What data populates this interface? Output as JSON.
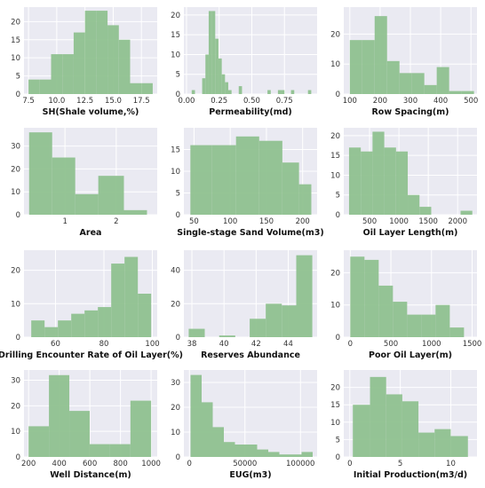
{
  "chart_data": [
    {
      "type": "bar",
      "xlabel": "SH(Shale volume,%)",
      "xlim": [
        7.1,
        18.9
      ],
      "ylim": [
        0,
        24
      ],
      "xticks": [
        7.5,
        10.0,
        12.5,
        15.0,
        17.5
      ],
      "xtick_labels": [
        "7.5",
        "10.0",
        "12.5",
        "15.0",
        "17.5"
      ],
      "yticks": [
        0,
        5,
        10,
        15,
        20
      ],
      "yfmt": "0",
      "bins": [
        [
          7.5,
          8.5
        ],
        [
          8.5,
          9.5
        ],
        [
          9.5,
          10.5
        ],
        [
          10.5,
          11.5
        ],
        [
          11.5,
          12.5
        ],
        [
          12.5,
          13.5
        ],
        [
          13.5,
          14.5
        ],
        [
          14.5,
          15.5
        ],
        [
          15.5,
          16.5
        ],
        [
          16.5,
          17.5
        ],
        [
          17.5,
          18.5
        ]
      ],
      "values": [
        4,
        4,
        11,
        11,
        17,
        23,
        23,
        19,
        15,
        3,
        3
      ]
    },
    {
      "type": "bar",
      "xlabel": "Permeability(md)",
      "xlim": [
        -0.02,
        1.0
      ],
      "ylim": [
        0,
        22
      ],
      "xticks": [
        0.0,
        0.25,
        0.5,
        0.75
      ],
      "xtick_labels": [
        "0.00",
        "0.25",
        "0.50",
        "0.75"
      ],
      "yticks": [
        0,
        5,
        10,
        15,
        20
      ],
      "yfmt": "0",
      "bins": [
        [
          0.04,
          0.065
        ],
        [
          0.12,
          0.145
        ],
        [
          0.145,
          0.17
        ],
        [
          0.17,
          0.195
        ],
        [
          0.195,
          0.22
        ],
        [
          0.22,
          0.245
        ],
        [
          0.245,
          0.27
        ],
        [
          0.27,
          0.295
        ],
        [
          0.295,
          0.32
        ],
        [
          0.32,
          0.345
        ],
        [
          0.4,
          0.425
        ],
        [
          0.62,
          0.645
        ],
        [
          0.7,
          0.725
        ],
        [
          0.725,
          0.75
        ],
        [
          0.8,
          0.825
        ],
        [
          0.93,
          0.955
        ]
      ],
      "values": [
        1,
        4,
        10,
        21,
        21,
        14,
        9,
        5,
        3,
        1,
        2,
        1,
        1,
        1,
        1,
        1
      ]
    },
    {
      "type": "bar",
      "xlabel": "Row Spacing(m)",
      "xlim": [
        80,
        520
      ],
      "ylim": [
        0,
        29
      ],
      "xticks": [
        100,
        200,
        300,
        400,
        500
      ],
      "xtick_labels": [
        "100",
        "200",
        "300",
        "400",
        "500"
      ],
      "yticks": [
        0,
        10,
        20
      ],
      "yfmt": "0",
      "bins": [
        [
          100,
          141
        ],
        [
          141,
          182
        ],
        [
          182,
          223
        ],
        [
          223,
          264
        ],
        [
          264,
          305
        ],
        [
          305,
          346
        ],
        [
          346,
          387
        ],
        [
          387,
          428
        ],
        [
          428,
          469
        ],
        [
          469,
          510
        ]
      ],
      "values": [
        18,
        18,
        26,
        11,
        7,
        7,
        3,
        9,
        1,
        1
      ]
    },
    {
      "type": "bar",
      "xlabel": "Area",
      "xlim": [
        0.2,
        2.8
      ],
      "ylim": [
        0,
        38
      ],
      "xticks": [
        1,
        2
      ],
      "xtick_labels": [
        "1",
        "2"
      ],
      "yticks": [
        0,
        10,
        20,
        30
      ],
      "yfmt": "0",
      "bins": [
        [
          0.3,
          0.75
        ],
        [
          0.75,
          1.2
        ],
        [
          1.2,
          1.65
        ],
        [
          1.65,
          2.15
        ],
        [
          2.15,
          2.6
        ]
      ],
      "values": [
        36,
        25,
        9,
        17,
        2
      ]
    },
    {
      "type": "bar",
      "xlabel": "Single-stage Sand Volume(m3)",
      "xlim": [
        36,
        220
      ],
      "ylim": [
        0,
        20
      ],
      "xticks": [
        50,
        100,
        150,
        200
      ],
      "xtick_labels": [
        "50",
        "100",
        "150",
        "200"
      ],
      "yticks": [
        0,
        5,
        10,
        15
      ],
      "yfmt": "0",
      "bins": [
        [
          45,
          75
        ],
        [
          75,
          108
        ],
        [
          108,
          140
        ],
        [
          140,
          172
        ],
        [
          172,
          195
        ],
        [
          195,
          212
        ]
      ],
      "values": [
        16,
        16,
        18,
        17,
        12,
        7
      ]
    },
    {
      "type": "bar",
      "xlabel": "Oil Layer Length(m)",
      "xlim": [
        60,
        2330
      ],
      "ylim": [
        0,
        22
      ],
      "xticks": [
        500,
        1000,
        1500,
        2000
      ],
      "xtick_labels": [
        "500",
        "1000",
        "1500",
        "2000"
      ],
      "yticks": [
        0,
        5,
        10,
        15,
        20
      ],
      "yfmt": "0",
      "bins": [
        [
          150,
          350
        ],
        [
          350,
          550
        ],
        [
          550,
          750
        ],
        [
          750,
          950
        ],
        [
          950,
          1150
        ],
        [
          1150,
          1350
        ],
        [
          1350,
          1550
        ],
        [
          2050,
          2250
        ]
      ],
      "values": [
        17,
        16,
        21,
        17,
        16,
        5,
        2,
        1
      ]
    },
    {
      "type": "bar",
      "xlabel": "Drilling Encounter Rate of Oil Layer(%)",
      "xlim": [
        47,
        102
      ],
      "ylim": [
        0,
        26
      ],
      "xticks": [
        60,
        80,
        100
      ],
      "xtick_labels": [
        "60",
        "80",
        "100"
      ],
      "yticks": [
        0,
        10,
        20
      ],
      "yfmt": "0",
      "bins": [
        [
          50,
          55.5
        ],
        [
          55.5,
          61
        ],
        [
          61,
          66.5
        ],
        [
          66.5,
          72
        ],
        [
          72,
          77.5
        ],
        [
          77.5,
          83
        ],
        [
          83,
          88.5
        ],
        [
          88.5,
          94
        ],
        [
          94,
          99.5
        ]
      ],
      "values": [
        5,
        3,
        5,
        7,
        8,
        9,
        22,
        24,
        13
      ]
    },
    {
      "type": "bar",
      "xlabel": "Reserves Abundance",
      "xlim": [
        37.5,
        45.8
      ],
      "ylim": [
        0,
        52
      ],
      "xticks": [
        38,
        40,
        42,
        44
      ],
      "xtick_labels": [
        "38",
        "40",
        "42",
        "44"
      ],
      "yticks": [
        0,
        20,
        40
      ],
      "yfmt": "0",
      "bins": [
        [
          37.8,
          38.8
        ],
        [
          39.7,
          40.7
        ],
        [
          41.6,
          42.6
        ],
        [
          42.6,
          43.6
        ],
        [
          43.6,
          44.5
        ],
        [
          44.5,
          45.5
        ]
      ],
      "values": [
        5,
        1,
        11,
        20,
        19,
        49
      ]
    },
    {
      "type": "bar",
      "xlabel": "Poor Oil Layer(m)",
      "xlim": [
        -80,
        1560
      ],
      "ylim": [
        0,
        27
      ],
      "xticks": [
        0,
        500,
        1000,
        1500
      ],
      "xtick_labels": [
        "0",
        "500",
        "1000",
        "1500"
      ],
      "yticks": [
        0,
        10,
        20
      ],
      "yfmt": "0",
      "bins": [
        [
          0,
          175
        ],
        [
          175,
          350
        ],
        [
          350,
          525
        ],
        [
          525,
          700
        ],
        [
          700,
          875
        ],
        [
          875,
          1050
        ],
        [
          1050,
          1225
        ],
        [
          1225,
          1400
        ]
      ],
      "values": [
        25,
        24,
        16,
        11,
        7,
        7,
        10,
        3
      ]
    },
    {
      "type": "bar",
      "xlabel": "Well Distance(m)",
      "xlim": [
        170,
        1040
      ],
      "ylim": [
        0,
        34
      ],
      "xticks": [
        200,
        400,
        600,
        800,
        1000
      ],
      "xtick_labels": [
        "200",
        "400",
        "600",
        "800",
        "1000"
      ],
      "yticks": [
        0,
        10,
        20,
        30
      ],
      "yfmt": "0",
      "bins": [
        [
          200,
          333
        ],
        [
          333,
          466
        ],
        [
          466,
          599
        ],
        [
          599,
          732
        ],
        [
          732,
          865
        ],
        [
          865,
          1000
        ]
      ],
      "values": [
        12,
        32,
        18,
        5,
        5,
        22
      ]
    },
    {
      "type": "bar",
      "xlabel": "EUG(m3)",
      "xlim": [
        -5000,
        115000
      ],
      "ylim": [
        0,
        35
      ],
      "xticks": [
        0,
        50000,
        100000
      ],
      "xtick_labels": [
        "0",
        "50000",
        "100000"
      ],
      "yticks": [
        0,
        10,
        20,
        30
      ],
      "yfmt": "0",
      "bins": [
        [
          1000,
          11000
        ],
        [
          11000,
          21000
        ],
        [
          21000,
          31000
        ],
        [
          31000,
          41000
        ],
        [
          41000,
          51000
        ],
        [
          51000,
          61000
        ],
        [
          61000,
          71000
        ],
        [
          71000,
          81000
        ],
        [
          81000,
          91000
        ],
        [
          91000,
          101000
        ],
        [
          101000,
          111000
        ]
      ],
      "values": [
        33,
        22,
        12,
        6,
        5,
        5,
        3,
        2,
        1,
        1,
        2
      ]
    },
    {
      "type": "bar",
      "xlabel": "Initial Production(m3/d)",
      "xlim": [
        -0.6,
        12.6
      ],
      "ylim": [
        0,
        25
      ],
      "xticks": [
        0,
        5,
        10
      ],
      "xtick_labels": [
        "0",
        "5",
        "10"
      ],
      "yticks": [
        0,
        5,
        10,
        15,
        20
      ],
      "yfmt": "0",
      "bins": [
        [
          0.3,
          2.0
        ],
        [
          2.0,
          3.6
        ],
        [
          3.6,
          5.2
        ],
        [
          5.2,
          6.8
        ],
        [
          6.8,
          8.4
        ],
        [
          8.4,
          10.0
        ],
        [
          10.0,
          11.7
        ]
      ],
      "values": [
        15,
        23,
        18,
        16,
        7,
        8,
        6
      ]
    }
  ],
  "colors": {
    "bar": "#8fc18f",
    "panel": "#eaeaf2",
    "grid": "#ffffff"
  }
}
